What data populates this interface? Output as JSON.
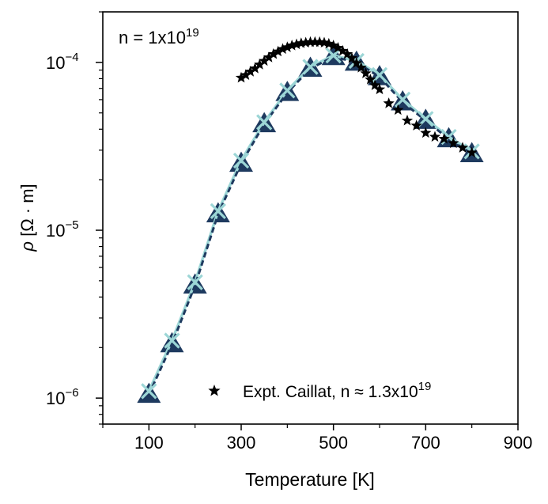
{
  "chart_data": {
    "type": "line",
    "annotation": {
      "text": "n = 1x10",
      "sup": "19"
    },
    "xlabel": "Temperature [K]",
    "ylabel": {
      "symbol": "ρ",
      "unit": " [Ω · m]"
    },
    "xlim": [
      0,
      900
    ],
    "ylim": [
      7e-07,
      0.0002
    ],
    "yscale": "log",
    "xticks": [
      100,
      300,
      500,
      700,
      900
    ],
    "xticks_minor": [
      0,
      200,
      400,
      600,
      800
    ],
    "yticks": [
      {
        "value": 1e-06,
        "base": "10",
        "exp": "−6"
      },
      {
        "value": 1e-05,
        "base": "10",
        "exp": "−5"
      },
      {
        "value": 0.0001,
        "base": "10",
        "exp": "−4"
      }
    ],
    "grid": false,
    "legend": {
      "position": "lower-right",
      "entries": [
        {
          "text": "Expt. Caillat, n ≈ 1.3x10",
          "sup": "19",
          "marker": "star"
        }
      ]
    },
    "series": [
      {
        "marker": "triangle",
        "color": "#1e3a5f",
        "line": "dashed",
        "x": [
          100,
          150,
          200,
          250,
          300,
          350,
          400,
          450,
          500,
          550,
          600,
          650,
          700,
          750,
          800
        ],
        "y": [
          1.05e-06,
          2.1e-06,
          4.7e-06,
          1.25e-05,
          2.5e-05,
          4.3e-05,
          6.6e-05,
          9.2e-05,
          0.000108,
          0.0001,
          8.2e-05,
          5.8e-05,
          4.5e-05,
          3.5e-05,
          2.85e-05
        ]
      },
      {
        "marker": "x",
        "color": "#9cd6d6",
        "line": "solid",
        "x": [
          100,
          150,
          200,
          250,
          300,
          350,
          400,
          450,
          500,
          550,
          600,
          650,
          700,
          750,
          800
        ],
        "y": [
          1.1e-06,
          2.2e-06,
          4.9e-06,
          1.3e-05,
          2.6e-05,
          4.4e-05,
          6.8e-05,
          9.4e-05,
          0.00011,
          0.000102,
          8.4e-05,
          6e-05,
          4.6e-05,
          3.6e-05,
          2.95e-05
        ]
      },
      {
        "marker": "star",
        "color": "#000000",
        "line": "none",
        "x": [
          300,
          310,
          320,
          330,
          340,
          350,
          360,
          370,
          380,
          390,
          400,
          410,
          420,
          430,
          440,
          450,
          460,
          470,
          480,
          490,
          500,
          510,
          520,
          530,
          540,
          550,
          560,
          570,
          580,
          590,
          600,
          620,
          640,
          660,
          680,
          700,
          720,
          740,
          760,
          780,
          800
        ],
        "y": [
          8.1e-05,
          8.4e-05,
          8.8e-05,
          9.2e-05,
          9.7e-05,
          0.000102,
          0.000107,
          0.000112,
          0.000116,
          0.00012,
          0.000123,
          0.000126,
          0.000128,
          0.00013,
          0.000131,
          0.000132,
          0.000132,
          0.000132,
          0.000131,
          0.000129,
          0.000126,
          0.000122,
          0.000117,
          0.000112,
          0.000106,
          9.9e-05,
          9.3e-05,
          8.6e-05,
          7.9e-05,
          7.3e-05,
          6.9e-05,
          5.7e-05,
          5.2e-05,
          4.5e-05,
          4.2e-05,
          3.8e-05,
          3.6e-05,
          3.5e-05,
          3.3e-05,
          3.1e-05,
          2.9e-05
        ]
      }
    ]
  }
}
